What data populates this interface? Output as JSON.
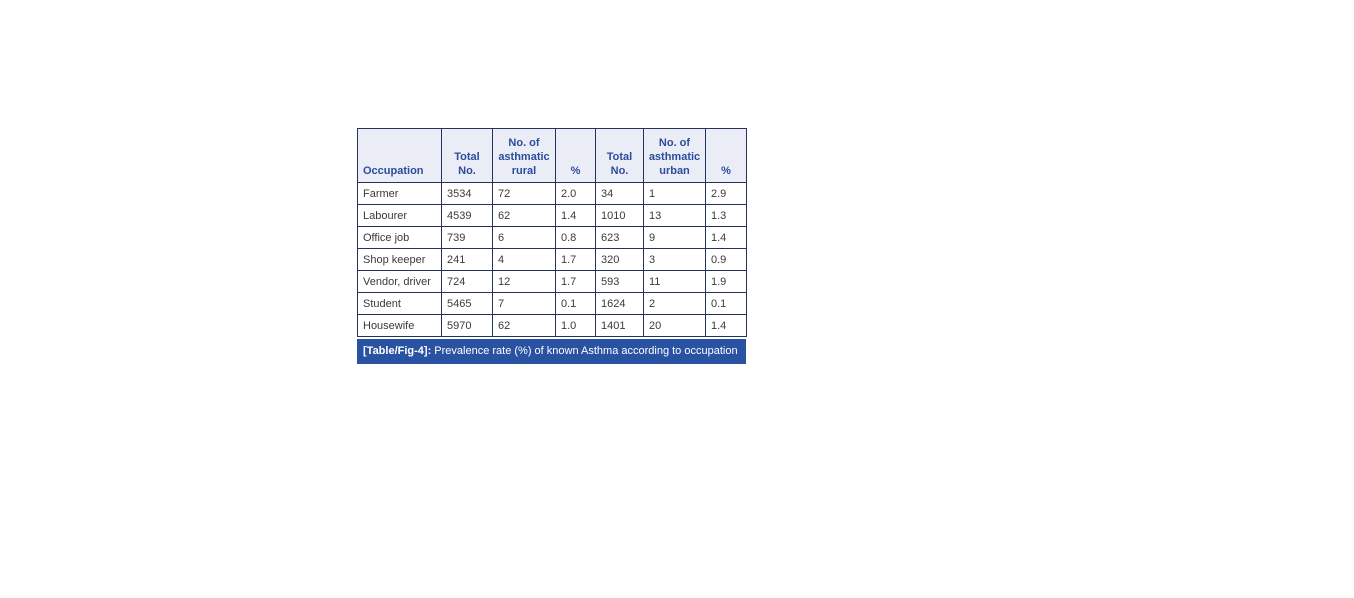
{
  "figure": {
    "table": {
      "headers": [
        "Occupation",
        "Total No.",
        "No. of asthmatic rural",
        "%",
        "Total No.",
        "No. of asthmatic urban",
        "%"
      ],
      "rows": [
        [
          "Farmer",
          "3534",
          "72",
          "2.0",
          "34",
          "1",
          "2.9"
        ],
        [
          "Labourer",
          "4539",
          "62",
          "1.4",
          "1010",
          "13",
          "1.3"
        ],
        [
          "Office job",
          "739",
          "6",
          "0.8",
          "623",
          "9",
          "1.4"
        ],
        [
          "Shop keeper",
          "241",
          "4",
          "1.7",
          "320",
          "3",
          "0.9"
        ],
        [
          "Vendor, driver",
          "724",
          "12",
          "1.7",
          "593",
          "11",
          "1.9"
        ],
        [
          "Student",
          "5465",
          "7",
          "0.1",
          "1624",
          "2",
          "0.1"
        ],
        [
          "Housewife",
          "5970",
          "62",
          "1.0",
          "1401",
          "20",
          "1.4"
        ]
      ]
    },
    "caption": {
      "label": "[Table/Fig-4]:",
      "text": " Prevalence rate (%) of known Asthma according to occupation"
    },
    "colors": {
      "border": "#24335c",
      "header_bg": "#eaecf6",
      "header_text": "#2c4d9c",
      "caption_bg": "#2a52a2",
      "caption_text": "#ffffff",
      "body_text": "#3a3a3a",
      "page_bg": "#ffffff"
    }
  },
  "chart_data": {
    "type": "table",
    "title": "[Table/Fig-4]: Prevalence rate (%) of known Asthma according to occupation",
    "columns": [
      "Occupation",
      "Total No.",
      "No. of asthmatic rural",
      "%",
      "Total No.",
      "No. of asthmatic urban",
      "%"
    ],
    "rows": [
      [
        "Farmer",
        3534,
        72,
        2.0,
        34,
        1,
        2.9
      ],
      [
        "Labourer",
        4539,
        62,
        1.4,
        1010,
        13,
        1.3
      ],
      [
        "Office job",
        739,
        6,
        0.8,
        623,
        9,
        1.4
      ],
      [
        "Shop keeper",
        241,
        4,
        1.7,
        320,
        3,
        0.9
      ],
      [
        "Vendor, driver",
        724,
        12,
        1.7,
        593,
        11,
        1.9
      ],
      [
        "Student",
        5465,
        7,
        0.1,
        1624,
        2,
        0.1
      ],
      [
        "Housewife",
        5970,
        62,
        1.0,
        1401,
        20,
        1.4
      ]
    ]
  }
}
